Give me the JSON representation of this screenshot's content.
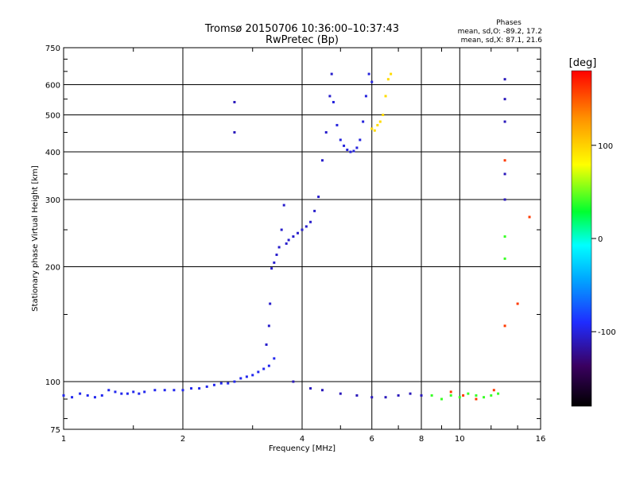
{
  "chart_data": {
    "type": "scatter",
    "title_line1": "Tromsø 20150706 10:36:00–10:37:43",
    "title_line2": "RwPretec (Bp)",
    "xlabel": "Frequency [MHz]",
    "ylabel": "Stationary phase Virtual Height [km]",
    "x_scale": "log",
    "y_scale": "log",
    "xlim": [
      1,
      16
    ],
    "ylim": [
      75,
      750
    ],
    "grid": true,
    "x_ticks": [
      {
        "value": 1,
        "label": "1"
      },
      {
        "value": 2,
        "label": "2"
      },
      {
        "value": 4,
        "label": "4"
      },
      {
        "value": 6,
        "label": "6"
      },
      {
        "value": 8,
        "label": "8"
      },
      {
        "value": 10,
        "label": "10"
      },
      {
        "value": 16,
        "label": "16"
      }
    ],
    "y_ticks": [
      {
        "value": 75,
        "label": "75"
      },
      {
        "value": 100,
        "label": "100"
      },
      {
        "value": 200,
        "label": "200"
      },
      {
        "value": 300,
        "label": "300"
      },
      {
        "value": 400,
        "label": "400"
      },
      {
        "value": 500,
        "label": "500"
      },
      {
        "value": 600,
        "label": "600"
      },
      {
        "value": 750,
        "label": "750"
      }
    ],
    "phase_info": {
      "heading": "Phases",
      "line_o": "mean, sd,O: -89.2, 17.2",
      "line_x": "mean, sd,X:  87.1, 21.6"
    },
    "colorbar": {
      "label": "[deg]",
      "range": [
        -180,
        180
      ],
      "ticks": [
        {
          "value": 100,
          "label": "100"
        },
        {
          "value": 0,
          "label": "0"
        },
        {
          "value": -100,
          "label": "-100"
        }
      ]
    },
    "traces": [
      {
        "name": "",
        "phase": -95,
        "points": [
          [
            1.0,
            92
          ],
          [
            1.05,
            91
          ],
          [
            1.1,
            93
          ],
          [
            1.15,
            92
          ],
          [
            1.2,
            91
          ],
          [
            1.25,
            92
          ],
          [
            1.3,
            95
          ],
          [
            1.35,
            94
          ],
          [
            1.4,
            93
          ],
          [
            1.45,
            93
          ],
          [
            1.5,
            94
          ],
          [
            1.55,
            93
          ],
          [
            1.6,
            94
          ],
          [
            1.7,
            95
          ],
          [
            1.8,
            95
          ],
          [
            1.9,
            95
          ],
          [
            2.0,
            95
          ],
          [
            2.1,
            96
          ],
          [
            2.2,
            96
          ],
          [
            2.3,
            97
          ],
          [
            2.4,
            98
          ],
          [
            2.5,
            99
          ],
          [
            2.6,
            99
          ],
          [
            2.7,
            100
          ],
          [
            2.8,
            102
          ],
          [
            2.9,
            103
          ],
          [
            3.0,
            104
          ],
          [
            3.1,
            106
          ],
          [
            3.2,
            108
          ],
          [
            3.3,
            110
          ],
          [
            3.4,
            115
          ]
        ]
      },
      {
        "name": "",
        "phase": -105,
        "points": [
          [
            3.25,
            125
          ],
          [
            3.3,
            140
          ],
          [
            3.32,
            160
          ],
          [
            3.35,
            198
          ],
          [
            3.4,
            205
          ],
          [
            3.45,
            215
          ],
          [
            3.5,
            225
          ],
          [
            3.55,
            250
          ],
          [
            3.6,
            290
          ],
          [
            3.65,
            230
          ],
          [
            3.7,
            235
          ],
          [
            3.8,
            240
          ],
          [
            3.9,
            245
          ],
          [
            4.0,
            250
          ],
          [
            4.1,
            255
          ],
          [
            4.2,
            262
          ],
          [
            4.3,
            280
          ],
          [
            4.4,
            305
          ],
          [
            4.5,
            380
          ],
          [
            4.6,
            450
          ],
          [
            4.7,
            560
          ],
          [
            4.75,
            640
          ]
        ]
      },
      {
        "name": "",
        "phase": -100,
        "points": [
          [
            4.8,
            540
          ],
          [
            4.9,
            470
          ],
          [
            5.0,
            430
          ],
          [
            5.1,
            415
          ],
          [
            5.2,
            405
          ],
          [
            5.3,
            400
          ],
          [
            5.4,
            402
          ],
          [
            5.5,
            410
          ],
          [
            5.6,
            430
          ],
          [
            5.7,
            480
          ],
          [
            5.8,
            560
          ],
          [
            5.9,
            640
          ],
          [
            6.0,
            610
          ]
        ]
      },
      {
        "name": "",
        "phase": 95,
        "points": [
          [
            6.0,
            460
          ],
          [
            6.1,
            455
          ],
          [
            6.2,
            470
          ],
          [
            6.3,
            480
          ],
          [
            6.4,
            500
          ],
          [
            6.5,
            560
          ],
          [
            6.6,
            620
          ],
          [
            6.7,
            640
          ]
        ]
      },
      {
        "name": "",
        "phase": -110,
        "points": [
          [
            2.7,
            450
          ],
          [
            2.7,
            540
          ],
          [
            3.8,
            100
          ],
          [
            4.2,
            96
          ],
          [
            4.5,
            95
          ],
          [
            5.0,
            93
          ],
          [
            5.5,
            92
          ],
          [
            6.0,
            91
          ],
          [
            6.5,
            91
          ],
          [
            7.0,
            92
          ],
          [
            7.5,
            93
          ],
          [
            8.0,
            92
          ],
          [
            13.0,
            620
          ],
          [
            13.0,
            550
          ],
          [
            13.0,
            480
          ],
          [
            13.0,
            350
          ],
          [
            13.0,
            300
          ]
        ]
      },
      {
        "name": "",
        "phase": 40,
        "points": [
          [
            8.5,
            92
          ],
          [
            9.0,
            90
          ],
          [
            9.5,
            92
          ],
          [
            10.0,
            91
          ],
          [
            10.5,
            93
          ],
          [
            11.0,
            92
          ],
          [
            11.5,
            91
          ],
          [
            12.0,
            92
          ],
          [
            12.5,
            93
          ],
          [
            13.0,
            240
          ],
          [
            13.0,
            210
          ]
        ]
      },
      {
        "name": "",
        "phase": 160,
        "points": [
          [
            9.5,
            94
          ],
          [
            10.2,
            92
          ],
          [
            11.0,
            90
          ],
          [
            12.2,
            95
          ],
          [
            13.0,
            380
          ],
          [
            13.0,
            140
          ],
          [
            14.0,
            160
          ],
          [
            15.0,
            270
          ]
        ]
      }
    ]
  }
}
